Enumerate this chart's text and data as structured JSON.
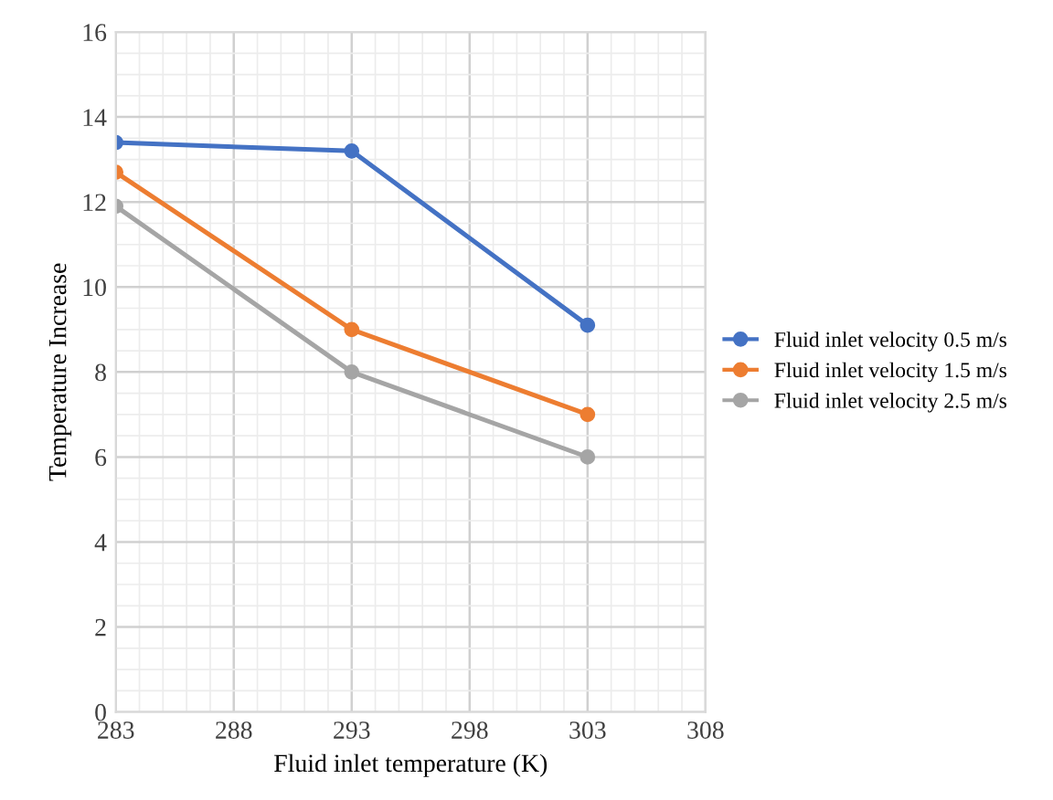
{
  "chart_data": {
    "type": "line",
    "xlabel": "Fluid inlet temperature (K)",
    "ylabel": "Temperature Increase",
    "x": [
      283,
      293,
      303
    ],
    "series": [
      {
        "name": "Fluid inlet velocity 0.5 m/s",
        "color": "#4472c4",
        "values": [
          13.4,
          13.2,
          9.1
        ]
      },
      {
        "name": "Fluid inlet velocity 1.5 m/s",
        "color": "#ed7d31",
        "values": [
          12.7,
          9.0,
          7.0
        ]
      },
      {
        "name": "Fluid inlet velocity 2.5 m/s",
        "color": "#a5a5a5",
        "values": [
          11.9,
          8.0,
          6.0
        ]
      }
    ],
    "xlim": [
      283,
      308
    ],
    "xticks": [
      283,
      288,
      293,
      298,
      303,
      308
    ],
    "ylim": [
      0,
      16
    ],
    "yticks": [
      0,
      2,
      4,
      6,
      8,
      10,
      12,
      14,
      16
    ],
    "grid": true,
    "legend": "right",
    "marker": "circle",
    "line_style": "solid"
  }
}
